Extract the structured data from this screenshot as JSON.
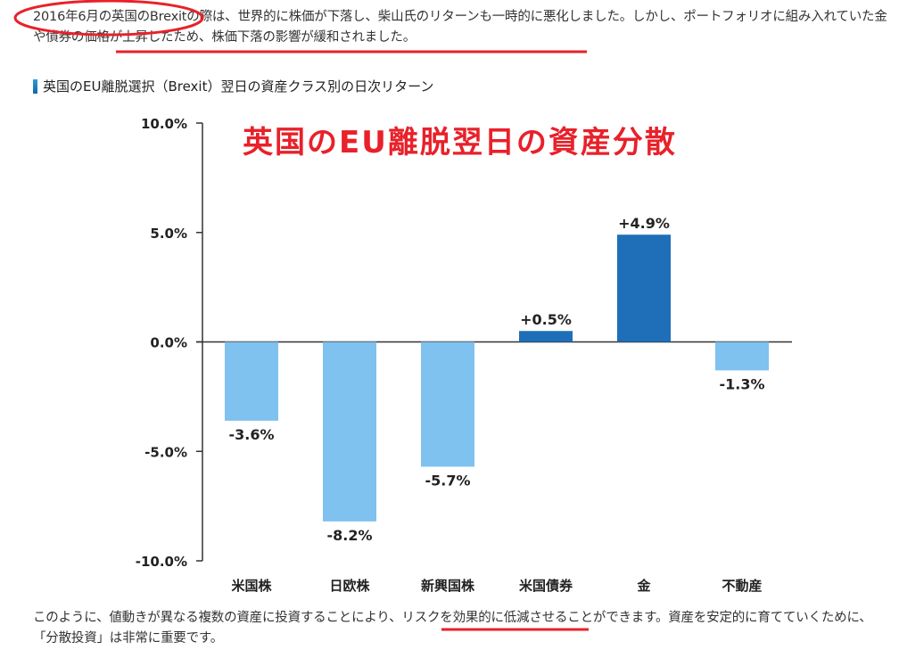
{
  "intro_text": "2016年6月の英国のBrexitの際は、世界的に株価が下落し、柴山氏のリターンも一時的に悪化しました。しかし、ポートフォリオに組み入れていた金や債券の価格が上昇したため、株価下落の影響が緩和されました。",
  "section_title": "英国のEU離脱選択（Brexit）翌日の資産クラス別の日次リターン",
  "outro_text": "このように、値動きが異なる複数の資産に投資することにより、リスクを効果的に低減させることができます。資産を安定的に育てていくために、「分散投資」は非常に重要です。",
  "colors": {
    "negative_bar": "#7fc1ef",
    "positive_bar": "#1e6fb8",
    "annotation_red": "#e8212a",
    "axis": "#333333"
  },
  "chart_data": {
    "type": "bar",
    "title": "英国のEU離脱翌日の資産分散",
    "categories": [
      "米国株",
      "日欧株",
      "新興国株",
      "米国債券",
      "金",
      "不動産"
    ],
    "values": [
      -3.6,
      -8.2,
      -5.7,
      0.5,
      4.9,
      -1.3
    ],
    "value_labels": [
      "-3.6%",
      "-8.2%",
      "-5.7%",
      "+0.5%",
      "+4.9%",
      "-1.3%"
    ],
    "yticks": [
      10.0,
      5.0,
      0.0,
      -5.0,
      -10.0
    ],
    "ytick_labels": [
      "10.0%",
      "5.0%",
      "0.0%",
      "-5.0%",
      "-10.0%"
    ],
    "ylim": [
      -10,
      10
    ],
    "xlabel": "",
    "ylabel": "",
    "grid": false
  }
}
